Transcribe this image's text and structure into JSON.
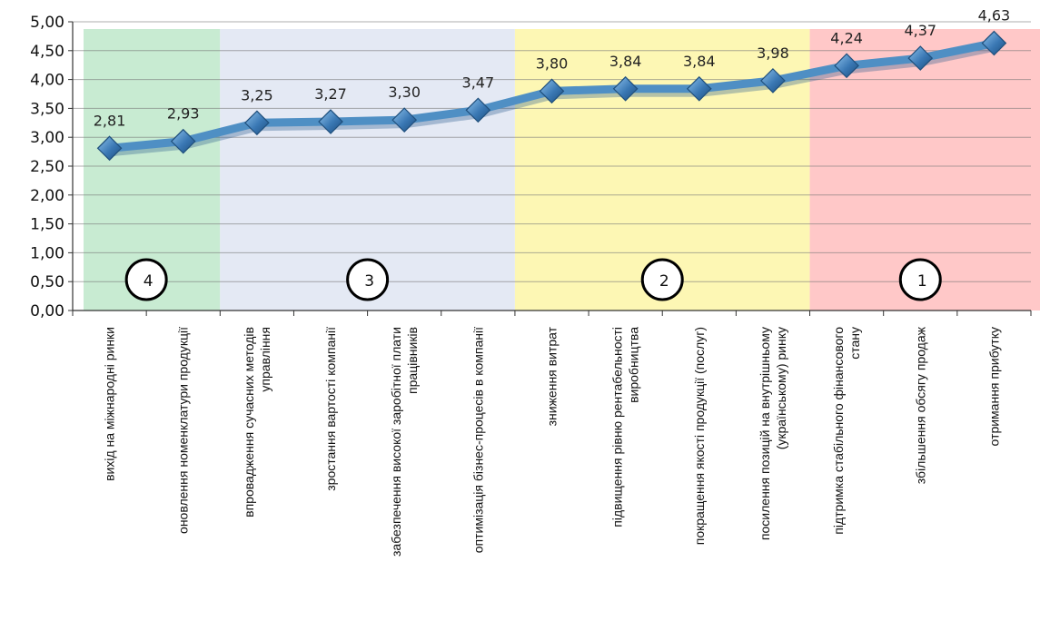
{
  "chart_data": {
    "type": "line",
    "title": "",
    "xlabel": "",
    "ylabel": "",
    "ylim": [
      0,
      5
    ],
    "y_ticks": [
      "0,00",
      "0,50",
      "1,00",
      "1,50",
      "2,00",
      "2,50",
      "3,00",
      "3,50",
      "4,00",
      "4,50",
      "5,00"
    ],
    "grid": true,
    "categories": [
      [
        "вихід на міжнародні ринки"
      ],
      [
        "оновлення номенклатури продукції"
      ],
      [
        "впровадження сучасних методів",
        "управління"
      ],
      [
        "зростання вартості компанії"
      ],
      [
        "забезпечення високої заробітної плати",
        "працівників"
      ],
      [
        "оптимізація бізнес-процесів в компанії"
      ],
      [
        "зниження витрат"
      ],
      [
        "підвищення рівню рентабельності",
        "виробництва"
      ],
      [
        "покращення якості продукції (послуг)"
      ],
      [
        "посилення позицій на внутрішньому",
        "(українському) ринку"
      ],
      [
        "підтримка стабільного фінансового",
        "стану"
      ],
      [
        "збільшення обсягу продаж"
      ],
      [
        "отримання прибутку"
      ]
    ],
    "values": [
      2.81,
      2.93,
      3.25,
      3.27,
      3.3,
      3.47,
      3.8,
      3.84,
      3.84,
      3.98,
      4.24,
      4.37,
      4.63
    ],
    "data_labels": [
      "2,81",
      "2,93",
      "3,25",
      "3,27",
      "3,30",
      "3,47",
      "3,80",
      "3,84",
      "3,84",
      "3,98",
      "4,24",
      "4,37",
      "4,63"
    ],
    "zones": [
      {
        "label": "4",
        "from": 0,
        "to": 1,
        "color": "#c8ebd2"
      },
      {
        "label": "3",
        "from": 2,
        "to": 5,
        "color": "#e4e9f4"
      },
      {
        "label": "2",
        "from": 6,
        "to": 9,
        "color": "#fdf7b4"
      },
      {
        "label": "1",
        "from": 10,
        "to": 12,
        "color": "#ffc8c8"
      }
    ],
    "colors": {
      "line": "#4f8fc4",
      "marker": "#3a78b4",
      "marker_edge": "#1f4f7c",
      "grid": "#777777",
      "axis": "#333333"
    }
  }
}
